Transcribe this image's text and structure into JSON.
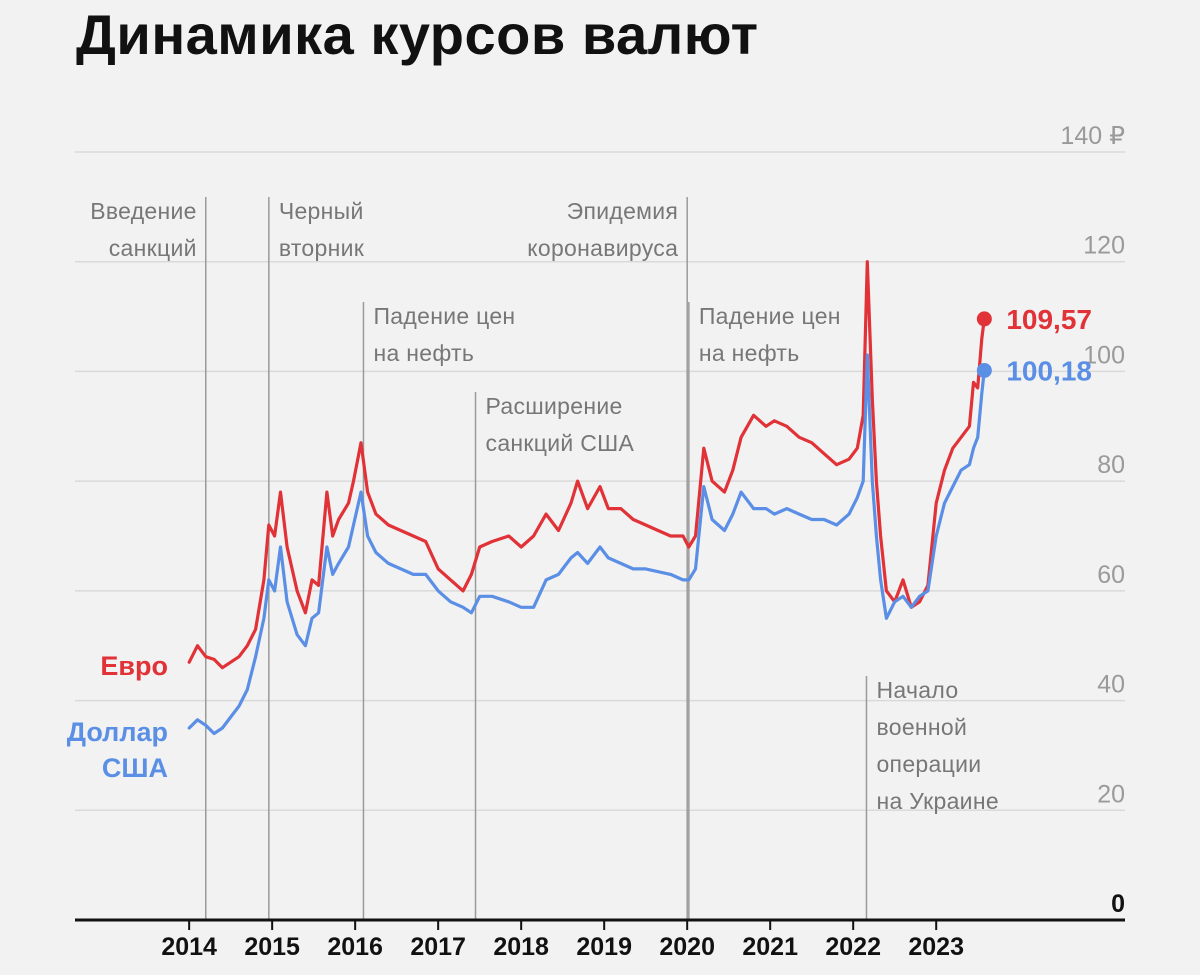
{
  "title": "Динамика курсов валют",
  "colors": {
    "euro": "#e03237",
    "dollar": "#5b8fe6",
    "event_line": "#9a9a9a",
    "grid": "#dadada",
    "axis_text": "#9a9a9a"
  },
  "chart_data": {
    "type": "line",
    "title": "Динамика курсов валют",
    "y_axis": {
      "ticks": [
        "0",
        "20",
        "40",
        "60",
        "80",
        "100",
        "120",
        "140 ₽"
      ],
      "range": [
        0,
        140
      ],
      "position": "right",
      "grid": true
    },
    "x_axis": {
      "ticks": [
        "2014",
        "2015",
        "2016",
        "2017",
        "2018",
        "2019",
        "2020",
        "2021",
        "2022",
        "2023"
      ],
      "range": [
        2013.95,
        2023.6
      ]
    },
    "series": [
      {
        "name": "Евро",
        "color": "#e03237",
        "end_label": "109,57",
        "points": [
          [
            2014.0,
            47
          ],
          [
            2014.1,
            50
          ],
          [
            2014.2,
            48
          ],
          [
            2014.3,
            47.5
          ],
          [
            2014.4,
            46
          ],
          [
            2014.5,
            47
          ],
          [
            2014.6,
            48
          ],
          [
            2014.7,
            50
          ],
          [
            2014.8,
            53
          ],
          [
            2014.9,
            62
          ],
          [
            2014.96,
            72
          ],
          [
            2015.03,
            70
          ],
          [
            2015.1,
            78
          ],
          [
            2015.18,
            68
          ],
          [
            2015.3,
            60
          ],
          [
            2015.4,
            56
          ],
          [
            2015.48,
            62
          ],
          [
            2015.56,
            61
          ],
          [
            2015.66,
            78
          ],
          [
            2015.73,
            70
          ],
          [
            2015.8,
            73
          ],
          [
            2015.92,
            76
          ],
          [
            2015.98,
            80
          ],
          [
            2016.07,
            87
          ],
          [
            2016.15,
            78
          ],
          [
            2016.25,
            74
          ],
          [
            2016.4,
            72
          ],
          [
            2016.55,
            71
          ],
          [
            2016.7,
            70
          ],
          [
            2016.85,
            69
          ],
          [
            2017.0,
            64
          ],
          [
            2017.15,
            62
          ],
          [
            2017.3,
            60
          ],
          [
            2017.4,
            63
          ],
          [
            2017.5,
            68
          ],
          [
            2017.65,
            69
          ],
          [
            2017.85,
            70
          ],
          [
            2018.0,
            68
          ],
          [
            2018.15,
            70
          ],
          [
            2018.3,
            74
          ],
          [
            2018.45,
            71
          ],
          [
            2018.6,
            76
          ],
          [
            2018.68,
            80
          ],
          [
            2018.8,
            75
          ],
          [
            2018.95,
            79
          ],
          [
            2019.05,
            75
          ],
          [
            2019.2,
            75
          ],
          [
            2019.35,
            73
          ],
          [
            2019.5,
            72
          ],
          [
            2019.65,
            71
          ],
          [
            2019.8,
            70
          ],
          [
            2019.95,
            70
          ],
          [
            2020.02,
            68
          ],
          [
            2020.1,
            70
          ],
          [
            2020.2,
            86
          ],
          [
            2020.3,
            80
          ],
          [
            2020.45,
            78
          ],
          [
            2020.55,
            82
          ],
          [
            2020.65,
            88
          ],
          [
            2020.8,
            92
          ],
          [
            2020.95,
            90
          ],
          [
            2021.05,
            91
          ],
          [
            2021.2,
            90
          ],
          [
            2021.35,
            88
          ],
          [
            2021.5,
            87
          ],
          [
            2021.65,
            85
          ],
          [
            2021.8,
            83
          ],
          [
            2021.95,
            84
          ],
          [
            2022.05,
            86
          ],
          [
            2022.12,
            92
          ],
          [
            2022.17,
            120
          ],
          [
            2022.23,
            95
          ],
          [
            2022.28,
            80
          ],
          [
            2022.33,
            70
          ],
          [
            2022.4,
            60
          ],
          [
            2022.5,
            58
          ],
          [
            2022.6,
            62
          ],
          [
            2022.7,
            57
          ],
          [
            2022.8,
            58
          ],
          [
            2022.9,
            61
          ],
          [
            2023.0,
            76
          ],
          [
            2023.1,
            82
          ],
          [
            2023.2,
            86
          ],
          [
            2023.3,
            88
          ],
          [
            2023.4,
            90
          ],
          [
            2023.45,
            98
          ],
          [
            2023.5,
            97
          ],
          [
            2023.55,
            106
          ],
          [
            2023.58,
            109.57
          ]
        ]
      },
      {
        "name": "Доллар США",
        "color": "#5b8fe6",
        "end_label": "100,18",
        "points": [
          [
            2014.0,
            35
          ],
          [
            2014.1,
            36.5
          ],
          [
            2014.2,
            35.5
          ],
          [
            2014.3,
            34
          ],
          [
            2014.4,
            35
          ],
          [
            2014.5,
            37
          ],
          [
            2014.6,
            39
          ],
          [
            2014.7,
            42
          ],
          [
            2014.8,
            48
          ],
          [
            2014.9,
            55
          ],
          [
            2014.96,
            62
          ],
          [
            2015.03,
            60
          ],
          [
            2015.1,
            68
          ],
          [
            2015.18,
            58
          ],
          [
            2015.3,
            52
          ],
          [
            2015.4,
            50
          ],
          [
            2015.48,
            55
          ],
          [
            2015.56,
            56
          ],
          [
            2015.66,
            68
          ],
          [
            2015.73,
            63
          ],
          [
            2015.8,
            65
          ],
          [
            2015.92,
            68
          ],
          [
            2015.98,
            72
          ],
          [
            2016.07,
            78
          ],
          [
            2016.15,
            70
          ],
          [
            2016.25,
            67
          ],
          [
            2016.4,
            65
          ],
          [
            2016.55,
            64
          ],
          [
            2016.7,
            63
          ],
          [
            2016.85,
            63
          ],
          [
            2017.0,
            60
          ],
          [
            2017.15,
            58
          ],
          [
            2017.3,
            57
          ],
          [
            2017.4,
            56
          ],
          [
            2017.5,
            59
          ],
          [
            2017.65,
            59
          ],
          [
            2017.85,
            58
          ],
          [
            2018.0,
            57
          ],
          [
            2018.15,
            57
          ],
          [
            2018.3,
            62
          ],
          [
            2018.45,
            63
          ],
          [
            2018.6,
            66
          ],
          [
            2018.68,
            67
          ],
          [
            2018.8,
            65
          ],
          [
            2018.95,
            68
          ],
          [
            2019.05,
            66
          ],
          [
            2019.2,
            65
          ],
          [
            2019.35,
            64
          ],
          [
            2019.5,
            64
          ],
          [
            2019.65,
            63.5
          ],
          [
            2019.8,
            63
          ],
          [
            2019.95,
            62
          ],
          [
            2020.02,
            62
          ],
          [
            2020.1,
            64
          ],
          [
            2020.2,
            79
          ],
          [
            2020.3,
            73
          ],
          [
            2020.45,
            71
          ],
          [
            2020.55,
            74
          ],
          [
            2020.65,
            78
          ],
          [
            2020.8,
            75
          ],
          [
            2020.95,
            75
          ],
          [
            2021.05,
            74
          ],
          [
            2021.2,
            75
          ],
          [
            2021.35,
            74
          ],
          [
            2021.5,
            73
          ],
          [
            2021.65,
            73
          ],
          [
            2021.8,
            72
          ],
          [
            2021.95,
            74
          ],
          [
            2022.05,
            77
          ],
          [
            2022.12,
            80
          ],
          [
            2022.17,
            103
          ],
          [
            2022.23,
            80
          ],
          [
            2022.28,
            70
          ],
          [
            2022.33,
            62
          ],
          [
            2022.4,
            55
          ],
          [
            2022.5,
            58
          ],
          [
            2022.6,
            59
          ],
          [
            2022.7,
            57
          ],
          [
            2022.8,
            59
          ],
          [
            2022.9,
            60
          ],
          [
            2023.0,
            70
          ],
          [
            2023.1,
            76
          ],
          [
            2023.2,
            79
          ],
          [
            2023.3,
            82
          ],
          [
            2023.4,
            83
          ],
          [
            2023.45,
            86
          ],
          [
            2023.5,
            88
          ],
          [
            2023.55,
            96
          ],
          [
            2023.58,
            100.18
          ]
        ]
      }
    ],
    "series_labels": [
      {
        "name": "Евро",
        "lines": [
          "Евро"
        ]
      },
      {
        "name": "Доллар США",
        "lines": [
          "Доллар",
          "США"
        ]
      }
    ],
    "annotations": [
      {
        "x": 2014.2,
        "lines": [
          "Введение",
          "санкций"
        ],
        "align": "left",
        "row": 0
      },
      {
        "x": 2014.96,
        "lines": [
          "Черный",
          "вторник"
        ],
        "align": "right",
        "row": 0
      },
      {
        "x": 2016.1,
        "lines": [
          "Падение цен",
          "на нефть"
        ],
        "align": "right",
        "row": 1
      },
      {
        "x": 2017.45,
        "lines": [
          "Расширение",
          "санкций США"
        ],
        "align": "right",
        "row": 2
      },
      {
        "x": 2020.0,
        "lines": [
          "Эпидемия",
          "коронавируса"
        ],
        "align": "left",
        "row": 0
      },
      {
        "x": 2020.02,
        "lines": [
          "Падение цен",
          "на нефть"
        ],
        "align": "right",
        "row": 1
      },
      {
        "x": 2022.16,
        "lines": [
          "Начало",
          "военной",
          "операции",
          "на Украине"
        ],
        "align": "right",
        "row": 3
      }
    ]
  }
}
